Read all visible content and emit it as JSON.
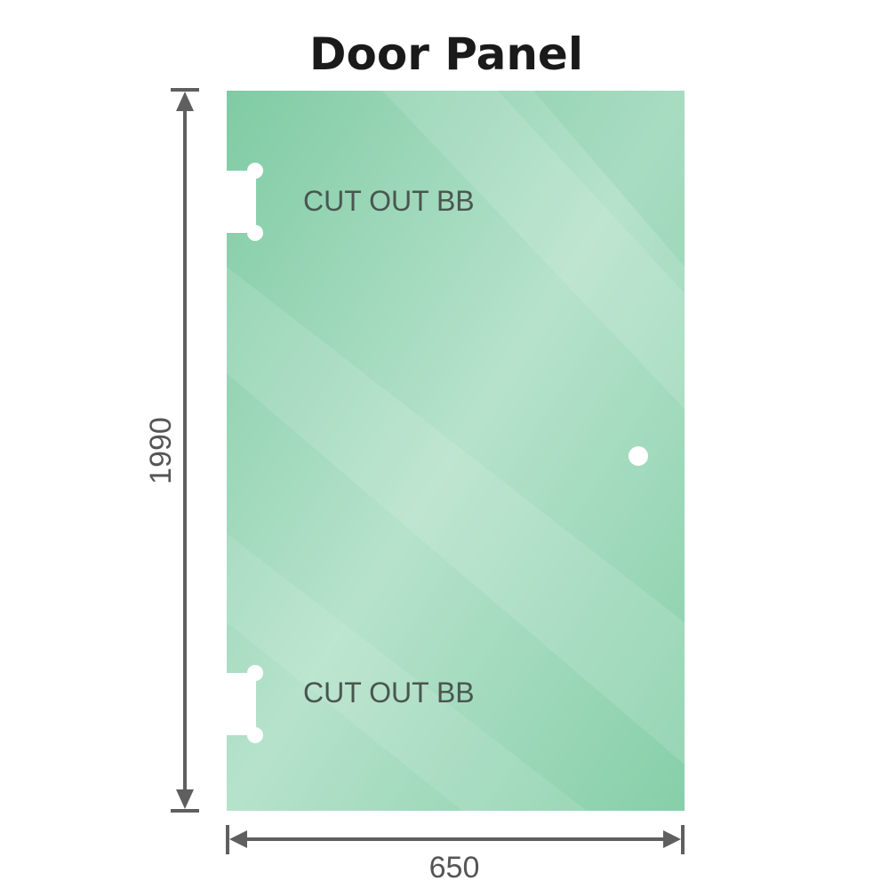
{
  "title": "Door Panel",
  "cutouts": [
    {
      "label": "CUT OUT BB"
    },
    {
      "label": "CUT OUT BB"
    }
  ],
  "dimensions": {
    "height": "1990",
    "width": "650"
  },
  "colors": {
    "glass": "#8fd3b0",
    "dimension_line": "#5f5f5f"
  }
}
